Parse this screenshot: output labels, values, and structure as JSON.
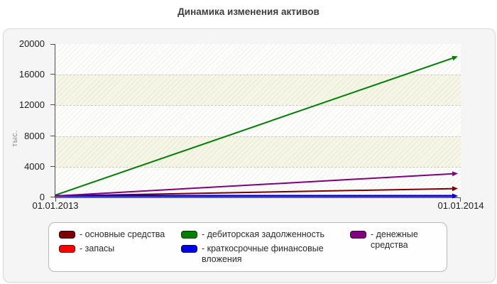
{
  "page_title": "Динамика изменения активов",
  "chart_data": {
    "type": "line",
    "title": "Динамика изменения активов",
    "ylabel": "тыс.",
    "ylim": [
      0,
      20000
    ],
    "yticks": [
      0,
      4000,
      8000,
      12000,
      16000,
      20000
    ],
    "x": [
      "01.01.2013",
      "01.01.2014"
    ],
    "grid": "horizontal-dashed",
    "legend_position": "bottom",
    "series": [
      {
        "name": "основные средства",
        "color": "#7c0101",
        "width": 2,
        "values": [
          0,
          1150
        ]
      },
      {
        "name": "запасы",
        "color": "#ff0000",
        "width": 2,
        "values": [
          0,
          0
        ]
      },
      {
        "name": "дебиторская задолженность",
        "color": "#008000",
        "width": 2,
        "values": [
          300,
          18300
        ]
      },
      {
        "name": "краткосрочные финансовые вложения",
        "color": "#0000e6",
        "width": 3,
        "values": [
          0,
          0
        ]
      },
      {
        "name": "денежные средства",
        "color": "#800080",
        "width": 2,
        "values": [
          0,
          3100
        ]
      }
    ]
  },
  "legend": {
    "items": [
      {
        "label": "- основные средства"
      },
      {
        "label": "- запасы"
      },
      {
        "label": "- дебиторская задолженность"
      },
      {
        "label": "- краткосрочные финансовые вложения"
      },
      {
        "label": "- денежные средства"
      }
    ]
  },
  "plot": {
    "band_colors": [
      "#fdfdfb",
      "#f5f6e6"
    ],
    "axis_color": "#4d4d4d",
    "gridline_color": "#cbcbcb"
  }
}
